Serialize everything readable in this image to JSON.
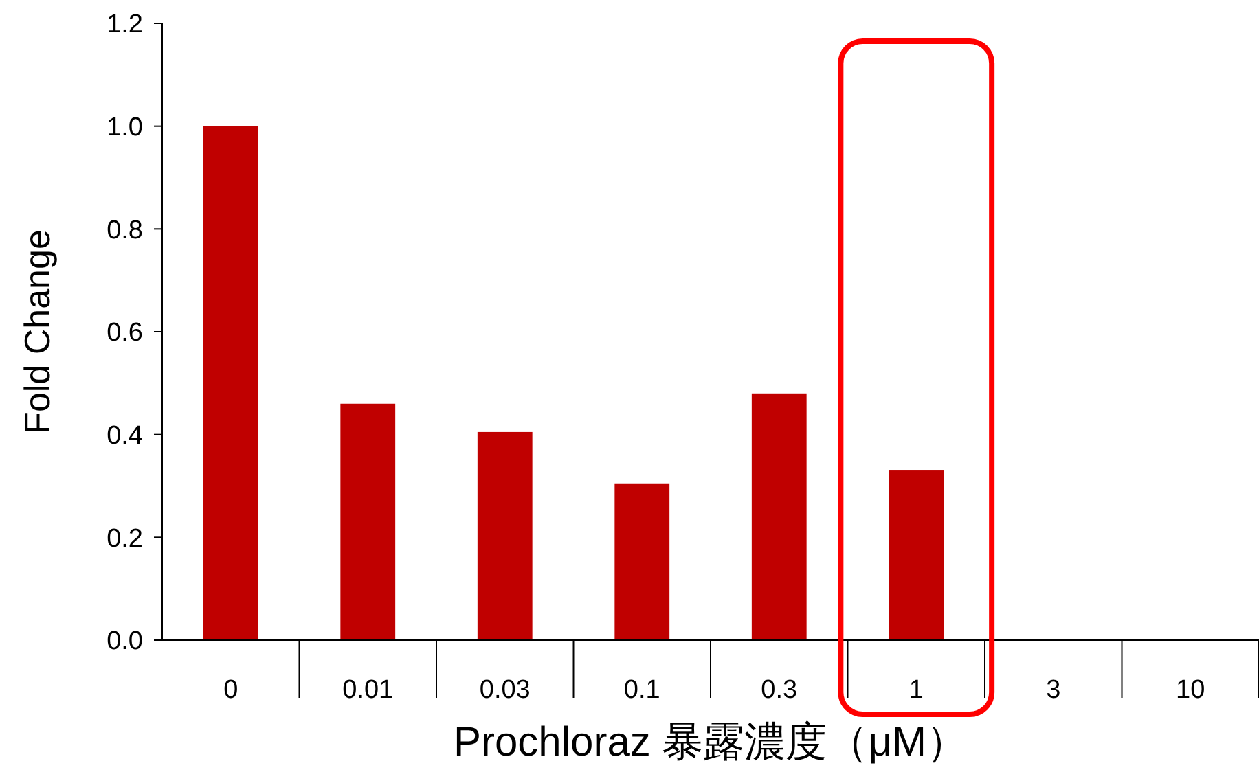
{
  "chart_data": {
    "type": "bar",
    "xlabel": "Prochloraz 暴露濃度（μM）",
    "ylabel": "Fold Change",
    "categories": [
      "0",
      "0.01",
      "0.03",
      "0.1",
      "0.3",
      "1",
      "3",
      "10"
    ],
    "values": [
      1.0,
      0.46,
      0.405,
      0.305,
      0.48,
      0.33,
      null,
      null
    ],
    "color": "#c00000",
    "ylim": [
      0,
      1.2
    ],
    "yticks": [
      {
        "value": 0,
        "label": "0.0"
      },
      {
        "value": 0.2,
        "label": "0.2"
      },
      {
        "value": 0.4,
        "label": "0.4"
      },
      {
        "value": 0.6,
        "label": "0.6"
      },
      {
        "value": 0.8,
        "label": "0.8"
      },
      {
        "value": 1,
        "label": "1.0"
      },
      {
        "value": 1.2,
        "label": "1.2"
      }
    ],
    "grid": false
  }
}
